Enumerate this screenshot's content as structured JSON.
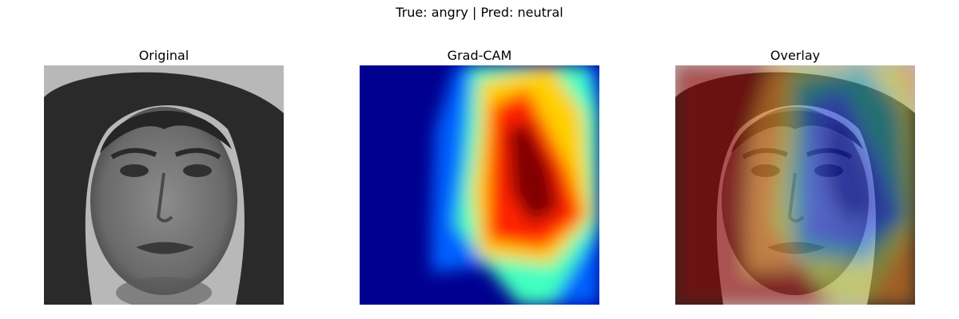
{
  "figure": {
    "suptitle": "True: angry | Pred: neutral"
  },
  "panels": [
    {
      "title": "Original",
      "kind": "grayscale-face-photo"
    },
    {
      "title": "Grad-CAM",
      "kind": "jet-colormap-heatmap"
    },
    {
      "title": "Overlay",
      "kind": "heatmap-over-face"
    }
  ],
  "labels": {
    "true_class": "angry",
    "predicted_class": "neutral"
  },
  "colors": {
    "heat_max": "#800000",
    "heat_high": "#ff2000",
    "heat_mid_high": "#ffd000",
    "heat_mid": "#40ffc0",
    "heat_low": "#0060ff",
    "heat_min": "#00008f"
  }
}
